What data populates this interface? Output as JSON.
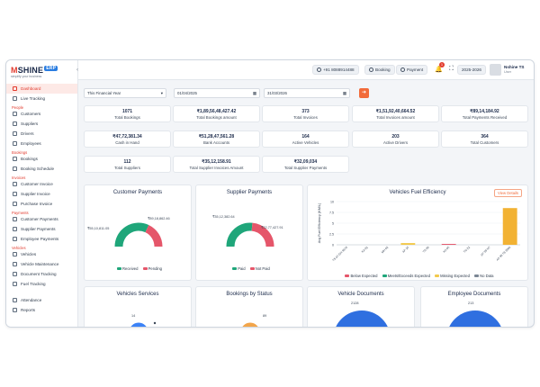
{
  "brand": {
    "name_a": "M",
    "name_b": "SHINE",
    "erp_badge": "ERP",
    "tagline": "simplify your business"
  },
  "sidebar": {
    "items": [
      {
        "type": "item",
        "label": "Dashboard",
        "active": true
      },
      {
        "type": "item",
        "label": "Live Tracking"
      },
      {
        "type": "section",
        "label": "People"
      },
      {
        "type": "item",
        "label": "Customers"
      },
      {
        "type": "item",
        "label": "Suppliers"
      },
      {
        "type": "item",
        "label": "Drivers"
      },
      {
        "type": "item",
        "label": "Employees"
      },
      {
        "type": "section",
        "label": "Bookings"
      },
      {
        "type": "item",
        "label": "Bookings"
      },
      {
        "type": "item",
        "label": "Booking Schedule"
      },
      {
        "type": "section",
        "label": "Invoices"
      },
      {
        "type": "item",
        "label": "Customer Invoice"
      },
      {
        "type": "item",
        "label": "Supplier Invoice"
      },
      {
        "type": "item",
        "label": "Purchase Invoice"
      },
      {
        "type": "section",
        "label": "Payments"
      },
      {
        "type": "item",
        "label": "Customer Payments"
      },
      {
        "type": "item",
        "label": "Supplier Payments"
      },
      {
        "type": "item",
        "label": "Employee Payments"
      },
      {
        "type": "section",
        "label": "Vehicles"
      },
      {
        "type": "item",
        "label": "Vehicles"
      },
      {
        "type": "item",
        "label": "Vehicle Maintenance"
      },
      {
        "type": "item",
        "label": "Document Tracking"
      },
      {
        "type": "item",
        "label": "Fuel Tracking"
      },
      {
        "type": "gap",
        "label": ""
      },
      {
        "type": "item",
        "label": "Attendance"
      },
      {
        "type": "item",
        "label": "Reports"
      }
    ]
  },
  "header": {
    "phone": "+91 8088914488",
    "booking": "Booking",
    "payment": "Payment",
    "notifications": "1",
    "year": "2025-2026",
    "user_name": "Nshine TS",
    "user_role": "User"
  },
  "filters": {
    "period": "This Financial Year",
    "from_date": "01/04/2025",
    "to_date": "31/03/2026"
  },
  "stats": [
    {
      "value": "1071",
      "label": "Total Bookings"
    },
    {
      "value": "₹1,89,56,48,427.42",
      "label": "Total Bookings amount"
    },
    {
      "value": "373",
      "label": "Total Invoices"
    },
    {
      "value": "₹1,51,92,40,664.52",
      "label": "Total Invoices amount"
    },
    {
      "value": "₹89,14,184.92",
      "label": "Total Payments Received"
    },
    {
      "value": "₹47,72,381.34",
      "label": "Cash in Hand"
    },
    {
      "value": "₹51,28,47,561.28",
      "label": "Bank Accounts"
    },
    {
      "value": "164",
      "label": "Active Vehicles"
    },
    {
      "value": "203",
      "label": "Active Drivers"
    },
    {
      "value": "364",
      "label": "Total Customers"
    },
    {
      "value": "112",
      "label": "Total Suppliers"
    },
    {
      "value": "₹35,12,158.91",
      "label": "Total Supplier Invoices Amount"
    },
    {
      "value": "₹32,09,034",
      "label": "Total Supplier Payments"
    }
  ],
  "customer_payments": {
    "title": "Customer Payments",
    "received_fraction": 0.64,
    "left_value": "₹55,10,811.05",
    "right_value": "₹89,18,862.46",
    "legend": [
      "Received",
      "Pending"
    ],
    "colors": {
      "a": "#1fa67a",
      "b": "#e5566a"
    }
  },
  "supplier_payments": {
    "title": "Supplier Payments",
    "paid_fraction": 0.53,
    "left_value": "₹35,12,382.64",
    "right_value": "₹32,77,427.91",
    "legend": [
      "Paid",
      "Not Paid"
    ],
    "colors": {
      "a": "#1fa67a",
      "b": "#e5566a"
    }
  },
  "fuel": {
    "title": "Vehicles Fuel Efficiency",
    "view_details": "View Details",
    "legend": [
      "Below Expected",
      "Meets/Exceeds Expected",
      "Missing Expected",
      "No Data"
    ],
    "legend_colors": [
      "#e5566a",
      "#1fa67a",
      "#f2c94c",
      "#7b8694"
    ]
  },
  "chart_data": {
    "type": "bar",
    "title": "Vehicles Fuel Efficiency",
    "xlabel": "",
    "ylabel": "Avg Fuel Efficiency (KM/L)",
    "categories": [
      "TS 07 GH 9676",
      "KA 01",
      "MH 02",
      "AP 16",
      "TS 09",
      "KA 05",
      "TN 22",
      "AP 39 NT",
      "AP 39 T8 3994"
    ],
    "values": [
      0,
      0,
      0,
      0.4,
      0,
      0.2,
      0,
      0,
      8.5
    ],
    "ylim": [
      0,
      10
    ],
    "yticks": [
      0,
      2.5,
      5,
      7.5,
      10
    ]
  },
  "bottom_panels": [
    "Vehicles Services",
    "Bookings by Status",
    "Vehicle Documents",
    "Employee Documents"
  ],
  "bottom_values": {
    "services": "14",
    "bookings": "89",
    "vehicle_docs": "2128",
    "employee_docs": "213"
  }
}
